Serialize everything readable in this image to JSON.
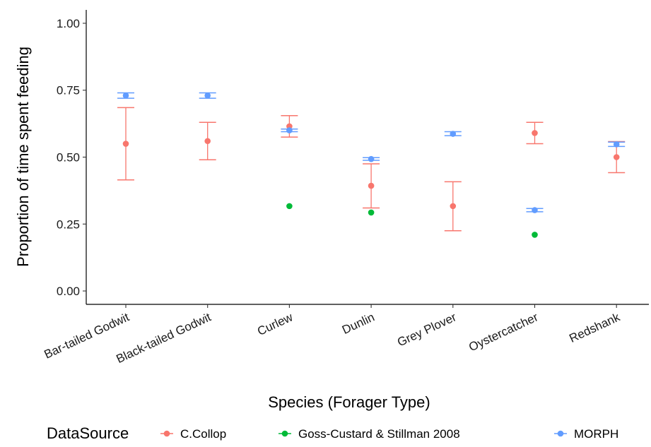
{
  "chart_data": {
    "type": "scatter",
    "xlabel": "Species (Forager Type)",
    "ylabel": "Proportion of time spent feeding",
    "ylim": [
      -0.05,
      1.05
    ],
    "yticks": [
      "0.00",
      "0.25",
      "0.50",
      "0.75",
      "1.00"
    ],
    "ytick_values": [
      0,
      0.25,
      0.5,
      0.75,
      1.0
    ],
    "grid": false,
    "categories": [
      "Bar-tailed Godwit",
      "Black-tailed Godwit",
      "Curlew",
      "Dunlin",
      "Grey Plover",
      "Oystercatcher",
      "Redshank"
    ],
    "legend": {
      "title": "DataSource",
      "placement": "bottom"
    },
    "series": [
      {
        "name": "C.Collop",
        "color": "#F8766D",
        "points": [
          {
            "category": "Bar-tailed Godwit",
            "y": 0.55,
            "ymin": 0.415,
            "ymax": 0.685
          },
          {
            "category": "Black-tailed Godwit",
            "y": 0.56,
            "ymin": 0.49,
            "ymax": 0.63
          },
          {
            "category": "Curlew",
            "y": 0.615,
            "ymin": 0.575,
            "ymax": 0.655
          },
          {
            "category": "Dunlin",
            "y": 0.393,
            "ymin": 0.31,
            "ymax": 0.475
          },
          {
            "category": "Grey Plover",
            "y": 0.317,
            "ymin": 0.225,
            "ymax": 0.408
          },
          {
            "category": "Oystercatcher",
            "y": 0.59,
            "ymin": 0.55,
            "ymax": 0.63
          },
          {
            "category": "Redshank",
            "y": 0.5,
            "ymin": 0.442,
            "ymax": 0.558
          }
        ]
      },
      {
        "name": "Goss-Custard & Stillman 2008",
        "color": "#00BA38",
        "points": [
          {
            "category": "Curlew",
            "y": 0.317
          },
          {
            "category": "Dunlin",
            "y": 0.293
          },
          {
            "category": "Oystercatcher",
            "y": 0.21
          }
        ]
      },
      {
        "name": "MORPH",
        "color": "#619CFF",
        "points": [
          {
            "category": "Bar-tailed Godwit",
            "y": 0.73,
            "ymin": 0.72,
            "ymax": 0.74
          },
          {
            "category": "Black-tailed Godwit",
            "y": 0.73,
            "ymin": 0.72,
            "ymax": 0.74
          },
          {
            "category": "Curlew",
            "y": 0.6,
            "ymin": 0.595,
            "ymax": 0.605
          },
          {
            "category": "Dunlin",
            "y": 0.493,
            "ymin": 0.488,
            "ymax": 0.498
          },
          {
            "category": "Grey Plover",
            "y": 0.587,
            "ymin": 0.58,
            "ymax": 0.595
          },
          {
            "category": "Oystercatcher",
            "y": 0.302,
            "ymin": 0.296,
            "ymax": 0.308
          },
          {
            "category": "Redshank",
            "y": 0.548,
            "ymin": 0.54,
            "ymax": 0.556
          }
        ]
      }
    ]
  }
}
